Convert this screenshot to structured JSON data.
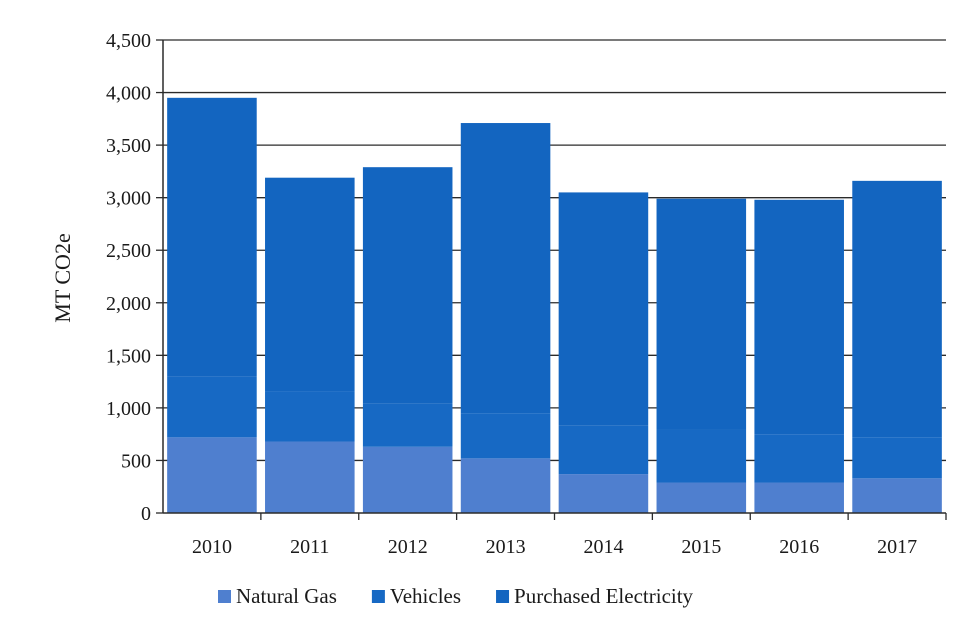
{
  "chart_data": {
    "type": "bar",
    "stacked": true,
    "title": "",
    "xlabel": "",
    "ylabel": "MT CO2e",
    "ylim": [
      0,
      4500
    ],
    "yticks": [
      0,
      500,
      1000,
      1500,
      2000,
      2500,
      3000,
      3500,
      4000,
      4500
    ],
    "ytick_labels": [
      "0",
      "500",
      "1,000",
      "1,500",
      "2,000",
      "2,500",
      "3,000",
      "3,500",
      "4,000",
      "4,500"
    ],
    "grid": true,
    "legend_position": "bottom",
    "categories": [
      "2010",
      "2011",
      "2012",
      "2013",
      "2014",
      "2015",
      "2016",
      "2017"
    ],
    "series": [
      {
        "name": "Natural Gas",
        "color": "#4f7fcf",
        "values": [
          720,
          680,
          630,
          520,
          370,
          290,
          290,
          330
        ]
      },
      {
        "name": "Vehicles",
        "color": "#1769c4",
        "values": [
          580,
          480,
          410,
          430,
          460,
          500,
          460,
          390
        ]
      },
      {
        "name": "Purchased Electricity",
        "color": "#1365c0",
        "values": [
          2650,
          2030,
          2250,
          2760,
          2220,
          2200,
          2230,
          2440
        ]
      }
    ]
  }
}
